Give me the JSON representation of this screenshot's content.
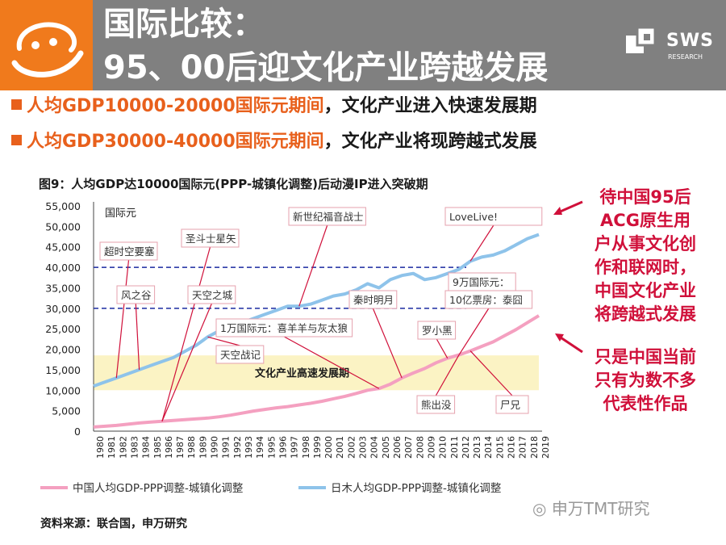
{
  "header": {
    "title_line1": "国际比较：",
    "title_line2": "95、00后迎文化产业跨越发展",
    "logo_text": "SWS",
    "logo_subtext": "RESEARCH"
  },
  "bullets": [
    {
      "highlight": "人均GDP10000-20000国际元期间",
      "rest": "，文化产业进入快速发展期"
    },
    {
      "highlight": "人均GDP30000-40000国际元期间",
      "rest": "，文化产业将现跨越式发展"
    }
  ],
  "figure_title": "图9：人均GDP达10000国际元(PPP-城镇化调整)后动漫IP进入突破期",
  "side_notes": {
    "note1": [
      "待中国95后",
      "ACG原生用",
      "户从事文化创",
      "作和联网时，",
      "中国文化产业",
      "将跨越式发展"
    ],
    "note2": [
      "只是中国当前",
      "只有为数不多",
      "代表性作品"
    ]
  },
  "source": "资料来源：联合国，申万研究",
  "watermark": "申万TMT研究",
  "colors": {
    "title_bar": "#808080",
    "logo_orange": "#f07a1c",
    "highlight_orange": "#e8601c",
    "side_red": "#d0103a",
    "japan_line": "#8ec3ea",
    "china_line": "#f4a0c0",
    "band": "#fbf3c4",
    "dashed": "#1a2aa0",
    "annotation": "#d0103a"
  },
  "chart_data": {
    "type": "line",
    "ylabel": "国际元",
    "ylim": [
      0,
      55000
    ],
    "yticks": [
      "0",
      "5,000",
      "10,000",
      "15,000",
      "20,000",
      "25,000",
      "30,000",
      "35,000",
      "40,000",
      "45,000",
      "50,000",
      "55,000"
    ],
    "x": [
      "1980",
      "1981",
      "1982",
      "1983",
      "1984",
      "1985",
      "1986",
      "1987",
      "1988",
      "1989",
      "1990",
      "1991",
      "1992",
      "1993",
      "1994",
      "1995",
      "1996",
      "1997",
      "1998",
      "1999",
      "2000",
      "2001",
      "2002",
      "2003",
      "2004",
      "2005",
      "2006",
      "2007",
      "2008",
      "2009",
      "2010",
      "2011",
      "2012",
      "2013",
      "2014",
      "2015",
      "2016",
      "2017",
      "2018",
      "2019"
    ],
    "series": [
      {
        "name": "中国人均GDP-PPP调整-城镇化调整",
        "values": [
          1000,
          1200,
          1400,
          1700,
          2000,
          2200,
          2400,
          2600,
          2800,
          3000,
          3200,
          3500,
          3900,
          4400,
          4900,
          5300,
          5700,
          6000,
          6400,
          6800,
          7300,
          7900,
          8500,
          9200,
          10000,
          10400,
          11500,
          13000,
          14200,
          15300,
          16700,
          17800,
          18600,
          19600,
          20700,
          21800,
          23300,
          24800,
          26500,
          28200
        ]
      },
      {
        "name": "日木人均GDP-PPP调整-城镇化调整",
        "values": [
          11000,
          12000,
          13000,
          14000,
          15000,
          16000,
          17000,
          18000,
          19500,
          21000,
          23000,
          24500,
          25500,
          26500,
          27500,
          28500,
          29500,
          30500,
          30500,
          31000,
          32000,
          33000,
          33500,
          34500,
          36000,
          35000,
          37000,
          38000,
          38500,
          37000,
          37500,
          38500,
          39500,
          41500,
          42500,
          43000,
          44000,
          45500,
          47000,
          48000
        ]
      }
    ],
    "band": {
      "label": "文化产业高速发展期",
      "from": 10000,
      "to": 18500
    },
    "reference_lines": [
      30000,
      40000
    ],
    "annotations": [
      {
        "label": "超时空要塞",
        "year": 1982
      },
      {
        "label": "圣斗士星矢",
        "year": 1986
      },
      {
        "label": "风之谷",
        "year": 1984
      },
      {
        "label": "天空之城",
        "year": 1986
      },
      {
        "label": "新世纪福音战士",
        "year": 1995
      },
      {
        "label": "LoveLive!",
        "year": 2013
      },
      {
        "label": "1万国际元：喜羊羊与灰太狼",
        "year": 2005
      },
      {
        "label": "秦时明月",
        "year": 2007
      },
      {
        "label": "天空战记",
        "year": 1988
      },
      {
        "label": "9万国际元：",
        "year": 2013
      },
      {
        "label": "10亿票房：泰囧",
        "year": 2012
      },
      {
        "label": "罗小黑",
        "year": 2011
      },
      {
        "label": "熊出没",
        "year": 2012
      },
      {
        "label": "尸兄",
        "year": 2013
      }
    ]
  }
}
